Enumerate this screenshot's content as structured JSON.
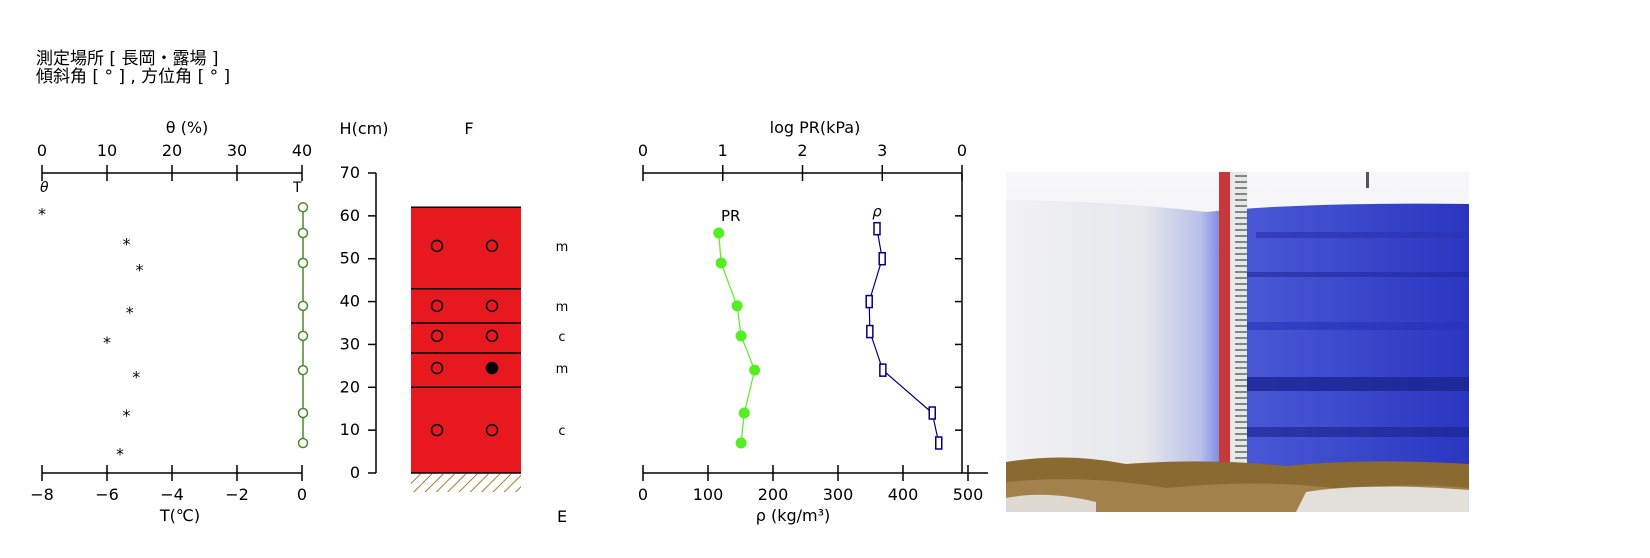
{
  "header": {
    "line1": "測定場所 [ 長岡・露場 ]",
    "line2": "傾斜角 [ ° ] , 方位角 [ ° ]"
  },
  "chart_data": [
    {
      "type": "scatter",
      "title_top": "θ (%)",
      "title_bottom": "T(℃)",
      "top_axis": {
        "ticks": [
          0,
          10,
          20,
          30,
          40
        ],
        "range": [
          0,
          40
        ]
      },
      "bottom_axis": {
        "tick_labels": [
          "−8",
          "−6",
          "−4",
          "−2",
          "0"
        ],
        "range": [
          -8,
          0
        ]
      },
      "legend": {
        "theta_symbol": "θ",
        "temp_symbol": "T"
      },
      "series": [
        {
          "name": "θ",
          "marker": "*",
          "color": "#000000",
          "points": [
            {
              "y": 61,
              "x": 0
            },
            {
              "y": 54,
              "x": 13
            },
            {
              "y": 48,
              "x": 15
            },
            {
              "y": 38,
              "x": 13.5
            },
            {
              "y": 31,
              "x": 10
            },
            {
              "y": 23,
              "x": 14.5
            },
            {
              "y": 14,
              "x": 13
            },
            {
              "y": 5,
              "x": 12
            }
          ]
        },
        {
          "name": "T",
          "marker": "open-circle",
          "color": "#4a8a2a",
          "points": [
            {
              "y": 62,
              "x": 0
            },
            {
              "y": 56,
              "x": 0
            },
            {
              "y": 49,
              "x": 0
            },
            {
              "y": 39,
              "x": 0
            },
            {
              "y": 32,
              "x": 0
            },
            {
              "y": 24,
              "x": 0
            },
            {
              "y": 14,
              "x": 0
            },
            {
              "y": 7,
              "x": 0
            }
          ]
        }
      ]
    },
    {
      "type": "layers",
      "ylabel": "H(cm)",
      "column_label": "F",
      "bottom_label": "E",
      "y_ticks": [
        0,
        10,
        20,
        30,
        40,
        50,
        60,
        70
      ],
      "ylim": [
        0,
        70
      ],
      "snow_color": "#e8181f",
      "ground_hatch_color": "#a08030",
      "boundaries": [
        62,
        43,
        35,
        28,
        20,
        0
      ],
      "layers": [
        {
          "top": 62,
          "bottom": 43,
          "code": "m",
          "circles": [
            {
              "y": 53,
              "filled_left": false,
              "filled_right": false
            }
          ]
        },
        {
          "top": 43,
          "bottom": 35,
          "code": "m",
          "circles": [
            {
              "y": 39,
              "filled_left": false,
              "filled_right": false
            }
          ]
        },
        {
          "top": 35,
          "bottom": 28,
          "code": "c",
          "circles": [
            {
              "y": 32,
              "filled_left": false,
              "filled_right": false
            }
          ]
        },
        {
          "top": 28,
          "bottom": 20,
          "code": "m",
          "circles": [
            {
              "y": 24.5,
              "filled_left": false,
              "filled_right": true
            }
          ]
        },
        {
          "top": 20,
          "bottom": 0,
          "code": "c",
          "circles": [
            {
              "y": 10,
              "filled_left": false,
              "filled_right": false
            }
          ]
        }
      ]
    },
    {
      "type": "line",
      "title_top": "log PR(kPa)",
      "title_bottom": "ρ (kg/m³)",
      "top_axis": {
        "ticks": [
          "0",
          "1",
          "2",
          "3",
          "0"
        ],
        "range": [
          0,
          4
        ]
      },
      "bottom_axis": {
        "ticks": [
          0,
          100,
          200,
          300,
          400,
          500
        ],
        "range": [
          0,
          500
        ]
      },
      "ylim": [
        0,
        70
      ],
      "series": [
        {
          "name": "PR",
          "color": "#55ee22",
          "marker": "filled-circle",
          "points": [
            {
              "y": 56,
              "x": 0.95
            },
            {
              "y": 49,
              "x": 0.98
            },
            {
              "y": 39,
              "x": 1.18
            },
            {
              "y": 32,
              "x": 1.23
            },
            {
              "y": 24,
              "x": 1.4
            },
            {
              "y": 14,
              "x": 1.27
            },
            {
              "y": 7,
              "x": 1.23
            }
          ]
        },
        {
          "name": "ρ",
          "color": "#000080",
          "marker": "open-square",
          "points": [
            {
              "y": 57,
              "x": 360
            },
            {
              "y": 50,
              "x": 368
            },
            {
              "y": 40,
              "x": 348
            },
            {
              "y": 33,
              "x": 349
            },
            {
              "y": 24,
              "x": 369
            },
            {
              "y": 14,
              "x": 445
            },
            {
              "y": 7,
              "x": 455
            }
          ]
        }
      ]
    }
  ],
  "photo": {
    "wall_colors": [
      "#f4f4f6",
      "#e8e9ee",
      "#c6ccec",
      "#3f4fd0",
      "#2532b8",
      "#1c2496"
    ],
    "ground_color": "#8a6a30",
    "ruler_colors": [
      "#c8383a",
      "#e8e8e8"
    ]
  }
}
